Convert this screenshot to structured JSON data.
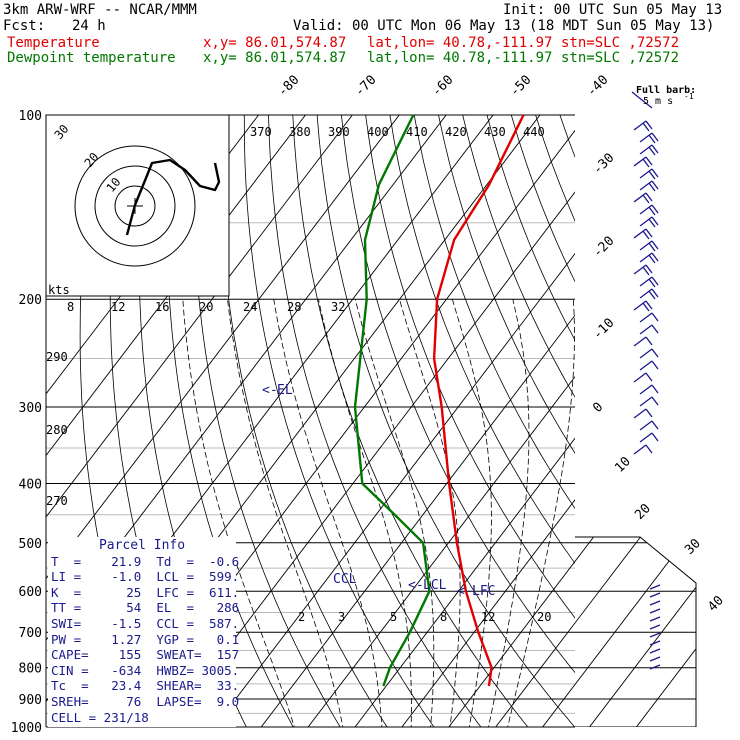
{
  "header": {
    "model": "3km ARW-WRF -- NCAR/MMM",
    "init": "Init: 00 UTC Sun 05 May 13",
    "fcst_label": "Fcst:",
    "fcst_value": "24 h",
    "valid": "Valid: 00 UTC Mon 06 May 13 (18 MDT Sun 05 May 13)",
    "temp_line": {
      "label": "Temperature",
      "xy": "x,y= 86.01,574.87",
      "latlon": "lat,lon= 40.78,-111.97",
      "stn": "stn=SLC ,72572"
    },
    "dew_line": {
      "label": "Dewpoint temperature",
      "xy": "x,y= 86.01,574.87",
      "latlon": "lat,lon= 40.78,-111.97",
      "stn": "stn=SLC ,72572"
    }
  },
  "colors": {
    "temperature": "#e00000",
    "dewpoint": "#007800",
    "labels": "#1a1a8c"
  },
  "chart_data": {
    "type": "line",
    "diagram": "skew-T log-P",
    "pressure_axis": {
      "ticks": [
        "100",
        "200",
        "300",
        "400",
        "500",
        "600",
        "700",
        "800",
        "900",
        "1000"
      ],
      "range_hpa": [
        100,
        1000
      ],
      "scale": "log"
    },
    "isotherm_labels": [
      "-80",
      "-70",
      "-60",
      "-50",
      "-40",
      "-30",
      "-20",
      "-10",
      "0",
      "10",
      "20",
      "30",
      "40"
    ],
    "theta_labels": [
      "270",
      "280",
      "290"
    ],
    "theta_e_labels": [
      "370",
      "380",
      "390",
      "400",
      "410",
      "420",
      "430",
      "440"
    ],
    "mixing_ratio_labels": [
      "2",
      "3",
      "5",
      "8",
      "12",
      "20"
    ],
    "hodograph_speed_labels": [
      "8",
      "12",
      "16",
      "20",
      "24",
      "28",
      "32"
    ],
    "hodograph_rings": [
      "10",
      "20",
      "30"
    ],
    "hodograph_units": "kts",
    "wind_legend": {
      "title": "Full barb:",
      "value": "5 m s",
      "exponent": "-1"
    },
    "series": [
      {
        "name": "Temperature",
        "color": "#e00000",
        "points": [
          {
            "p": 857,
            "t": 21.9
          },
          {
            "p": 800,
            "t": 19.5
          },
          {
            "p": 700,
            "t": 10.9
          },
          {
            "p": 600,
            "t": 1.6
          },
          {
            "p": 500,
            "t": -8.2
          },
          {
            "p": 400,
            "t": -19.5
          },
          {
            "p": 300,
            "t": -33.5
          },
          {
            "p": 250,
            "t": -43.0
          },
          {
            "p": 200,
            "t": -52.0
          },
          {
            "p": 160,
            "t": -58.0
          },
          {
            "p": 130,
            "t": -59.5
          },
          {
            "p": 100,
            "t": -63.5
          }
        ]
      },
      {
        "name": "Dewpoint temperature",
        "color": "#007800",
        "points": [
          {
            "p": 857,
            "t": -0.6
          },
          {
            "p": 800,
            "t": -2.2
          },
          {
            "p": 700,
            "t": -3.7
          },
          {
            "p": 600,
            "t": -6.2
          },
          {
            "p": 500,
            "t": -15.4
          },
          {
            "p": 450,
            "t": -26.0
          },
          {
            "p": 400,
            "t": -38.0
          },
          {
            "p": 300,
            "t": -52.0
          },
          {
            "p": 200,
            "t": -67.0
          },
          {
            "p": 160,
            "t": -77.0
          },
          {
            "p": 130,
            "t": -83.0
          },
          {
            "p": 100,
            "t": -87.0
          }
        ]
      }
    ],
    "levels": {
      "lcl": "LCL",
      "lfc": "LFC",
      "ccl": "CCL",
      "el": "EL",
      "marker_prefix": "<-"
    }
  },
  "parcel_info": {
    "title": "Parcel Info",
    "rows": [
      "T  =    21.9  Td  =  -0.6",
      "LI =    -1.0  LCL =  599.",
      "K  =      25  LFC =  611.",
      "TT =      54  EL  =   286",
      "SWI=    -1.5  CCL =  587.",
      "PW =    1.27  YGP =   0.1",
      "CAPE=    155  SWEAT=  157",
      "CIN =   -634  HWBZ= 3005.",
      "Tc  =   23.4  SHEAR=  33.",
      "SREH=     76  LAPSE=  9.0",
      "CELL = 231/18"
    ]
  }
}
